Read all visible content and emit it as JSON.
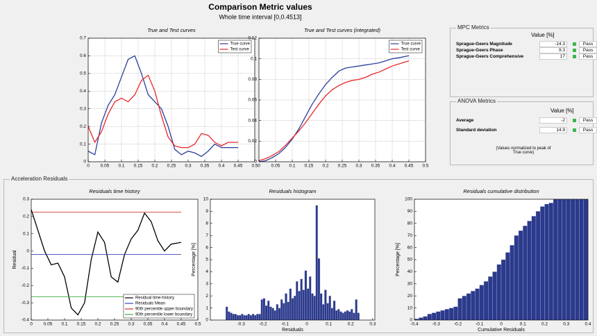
{
  "header": {
    "title": "Comparison Metric values",
    "subtitle": "Whole time interval [0,0.4513]"
  },
  "mpc_metrics": {
    "title": "MPC Metrics",
    "value_header": "Value [%]",
    "rows": [
      {
        "label": "Sprague-Geers Magnitude",
        "value": -14.3,
        "status": "Pass"
      },
      {
        "label": "Sprague-Geers Phase",
        "value": 9.3,
        "status": "Pass"
      },
      {
        "label": "Sprague-Geers Comprehensive",
        "value": 17,
        "status": "Pass"
      }
    ]
  },
  "anova_metrics": {
    "title": "ANOVA Metrics",
    "value_header": "Value [%]",
    "rows": [
      {
        "label": "Average",
        "value": -2,
        "status": "Pass"
      },
      {
        "label": "Standard deviation",
        "value": 14.9,
        "status": "Pass"
      }
    ],
    "note": "(Values normalized to peak of True curve)"
  },
  "residuals_panel": {
    "title": "Acceleration Residuals"
  },
  "chart_data": [
    {
      "type": "line",
      "title": "True and Test curves",
      "x": [
        0,
        0.02,
        0.04,
        0.06,
        0.08,
        0.1,
        0.12,
        0.14,
        0.16,
        0.18,
        0.2,
        0.22,
        0.24,
        0.26,
        0.28,
        0.3,
        0.32,
        0.34,
        0.36,
        0.38,
        0.4,
        0.42,
        0.45
      ],
      "series": [
        {
          "name": "True curve",
          "color": "#2a3f9a",
          "values": [
            0.06,
            0.04,
            0.22,
            0.32,
            0.38,
            0.48,
            0.58,
            0.6,
            0.5,
            0.38,
            0.34,
            0.3,
            0.2,
            0.07,
            0.04,
            0.06,
            0.05,
            0.03,
            0.06,
            0.1,
            0.08,
            0.08,
            0.08
          ]
        },
        {
          "name": "Test curve",
          "color": "#e8262a",
          "values": [
            0.2,
            0.11,
            0.17,
            0.27,
            0.34,
            0.36,
            0.34,
            0.38,
            0.46,
            0.49,
            0.4,
            0.26,
            0.14,
            0.09,
            0.08,
            0.08,
            0.1,
            0.16,
            0.15,
            0.11,
            0.09,
            0.11,
            0.11
          ]
        }
      ],
      "xlim": [
        0,
        0.5
      ],
      "ylim": [
        0,
        0.7
      ],
      "xticks": [
        0,
        0.05,
        0.1,
        0.15,
        0.2,
        0.25,
        0.3,
        0.35,
        0.4,
        0.45,
        0.5
      ],
      "yticks": [
        0,
        0.1,
        0.2,
        0.3,
        0.4,
        0.5,
        0.6,
        0.7
      ],
      "grid": true,
      "legend": "top-right"
    },
    {
      "type": "line",
      "title": "True and Test curves (integrated)",
      "x": [
        0,
        0.02,
        0.04,
        0.06,
        0.08,
        0.1,
        0.12,
        0.14,
        0.16,
        0.18,
        0.2,
        0.22,
        0.24,
        0.26,
        0.28,
        0.3,
        0.32,
        0.34,
        0.36,
        0.38,
        0.4,
        0.42,
        0.45
      ],
      "series": [
        {
          "name": "True curve",
          "color": "#2a3f9a",
          "values": [
            0,
            0.001,
            0.004,
            0.008,
            0.014,
            0.022,
            0.032,
            0.044,
            0.056,
            0.066,
            0.075,
            0.082,
            0.088,
            0.091,
            0.092,
            0.093,
            0.094,
            0.095,
            0.096,
            0.098,
            0.1,
            0.101,
            0.103
          ]
        },
        {
          "name": "Test curve",
          "color": "#e8262a",
          "values": [
            0.001,
            0.003,
            0.006,
            0.01,
            0.016,
            0.023,
            0.03,
            0.038,
            0.047,
            0.056,
            0.064,
            0.07,
            0.074,
            0.077,
            0.079,
            0.08,
            0.082,
            0.085,
            0.087,
            0.09,
            0.093,
            0.095,
            0.098
          ]
        }
      ],
      "xlim": [
        0,
        0.5
      ],
      "ylim": [
        0,
        0.12
      ],
      "xticks": [
        0,
        0.05,
        0.1,
        0.15,
        0.2,
        0.25,
        0.3,
        0.35,
        0.4,
        0.45,
        0.5
      ],
      "yticks": [
        0,
        0.02,
        0.04,
        0.06,
        0.08,
        0.1,
        0.12
      ],
      "grid": true,
      "legend": "top-right"
    },
    {
      "type": "line",
      "title": "Residuals time history",
      "y_label": "Residual",
      "x": [
        0,
        0.02,
        0.04,
        0.06,
        0.08,
        0.1,
        0.12,
        0.14,
        0.16,
        0.18,
        0.2,
        0.22,
        0.24,
        0.26,
        0.28,
        0.3,
        0.32,
        0.34,
        0.36,
        0.38,
        0.4,
        0.42,
        0.45
      ],
      "series": [
        {
          "name": "Residual time-history",
          "color": "#000000",
          "values": [
            0.24,
            0.12,
            0.0,
            -0.08,
            -0.07,
            -0.15,
            -0.33,
            -0.37,
            -0.3,
            -0.05,
            0.11,
            0.05,
            -0.15,
            -0.18,
            -0.02,
            0.07,
            0.12,
            0.22,
            0.17,
            0.06,
            0.0,
            0.04,
            0.05
          ]
        }
      ],
      "hlines": [
        {
          "name": "Residuals Mean",
          "color": "#3344bb",
          "value": -0.02
        },
        {
          "name": "90th percentile upper boundary",
          "color": "#cc3333",
          "value": 0.225
        },
        {
          "name": "90th percentile lower boundary",
          "color": "#44aa44",
          "value": -0.265
        }
      ],
      "xlim": [
        0,
        0.5
      ],
      "ylim": [
        -0.4,
        0.3
      ],
      "xticks": [
        0,
        0.05,
        0.1,
        0.15,
        0.2,
        0.25,
        0.3,
        0.35,
        0.4,
        0.45,
        0.5
      ],
      "yticks": [
        -0.4,
        -0.3,
        -0.2,
        -0.1,
        0,
        0.1,
        0.2,
        0.3
      ],
      "grid": false,
      "legend": "bottom-right"
    },
    {
      "type": "histogram",
      "title": "Residuals histogram",
      "x_label": "Residuals",
      "y_label": "Percentage [%]",
      "color": "#2b3a8c",
      "bins": [
        -0.37,
        -0.36,
        -0.35,
        -0.34,
        -0.33,
        -0.32,
        -0.31,
        -0.3,
        -0.29,
        -0.28,
        -0.27,
        -0.26,
        -0.25,
        -0.24,
        -0.23,
        -0.22,
        -0.21,
        -0.2,
        -0.19,
        -0.18,
        -0.17,
        -0.16,
        -0.15,
        -0.14,
        -0.13,
        -0.12,
        -0.11,
        -0.1,
        -0.09,
        -0.08,
        -0.07,
        -0.06,
        -0.05,
        -0.04,
        -0.03,
        -0.02,
        -0.01,
        0,
        0.01,
        0.02,
        0.03,
        0.04,
        0.05,
        0.06,
        0.07,
        0.08,
        0.09,
        0.1,
        0.11,
        0.12,
        0.13,
        0.14,
        0.15,
        0.16,
        0.17,
        0.18,
        0.19,
        0.2,
        0.21,
        0.22,
        0.23,
        0.24
      ],
      "values": [
        1.1,
        0.7,
        0.6,
        0.5,
        0.5,
        0.4,
        0.4,
        0.5,
        0.4,
        0.4,
        0.5,
        0.4,
        0.5,
        0.4,
        0.5,
        0.5,
        1.7,
        1.8,
        1.2,
        1.6,
        1.1,
        1.0,
        0.8,
        1.3,
        1.0,
        1.7,
        1.4,
        2.2,
        1.5,
        2.6,
        1.8,
        2.0,
        3.2,
        2.4,
        3.4,
        2.5,
        4.1,
        2.6,
        3.6,
        2.2,
        2.0,
        9.5,
        5.1,
        2.2,
        1.3,
        2.5,
        1.4,
        2.0,
        1.0,
        1.6,
        0.8,
        0.9,
        0.7,
        0.6,
        0.7,
        0.8,
        0.7,
        0.9,
        0.6,
        1.7,
        0.6
      ],
      "xlim": [
        -0.44,
        0.31
      ],
      "ylim": [
        0,
        10
      ],
      "xticks": [
        -0.3,
        -0.2,
        -0.1,
        0,
        0.1,
        0.2,
        0.3
      ],
      "yticks": [
        0,
        1,
        2,
        3,
        4,
        5,
        6,
        7,
        8,
        9,
        10
      ],
      "grid": false
    },
    {
      "type": "histogram",
      "title": "Residuals cumulative distribution",
      "x_label": "Cumulative Residuals",
      "y_label": "Percentage [%]",
      "color": "#2b3a8c",
      "bins": [
        -0.4,
        -0.38,
        -0.36,
        -0.34,
        -0.32,
        -0.3,
        -0.28,
        -0.26,
        -0.24,
        -0.22,
        -0.2,
        -0.18,
        -0.16,
        -0.14,
        -0.12,
        -0.1,
        -0.08,
        -0.06,
        -0.04,
        -0.02,
        0,
        0.02,
        0.04,
        0.06,
        0.08,
        0.1,
        0.12,
        0.14,
        0.16,
        0.18,
        0.2,
        0.22,
        0.24,
        0.26,
        0.28,
        0.3,
        0.32,
        0.34,
        0.36,
        0.38,
        0.4
      ],
      "values": [
        1,
        2,
        3,
        5,
        6,
        7,
        8,
        9,
        10,
        11,
        18,
        20,
        22,
        24,
        26,
        29,
        32,
        36,
        40,
        46,
        50,
        56,
        62,
        70,
        74,
        78,
        82,
        86,
        90,
        94,
        96,
        97,
        100,
        100,
        100,
        100,
        100,
        100,
        100,
        100
      ],
      "xlim": [
        -0.4,
        0.4
      ],
      "ylim": [
        0,
        100
      ],
      "xticks": [
        -0.4,
        -0.3,
        -0.2,
        -0.1,
        0,
        0.1,
        0.2,
        0.3,
        0.4
      ],
      "yticks": [
        0,
        10,
        20,
        30,
        40,
        50,
        60,
        70,
        80,
        90,
        100
      ],
      "grid": false
    }
  ]
}
